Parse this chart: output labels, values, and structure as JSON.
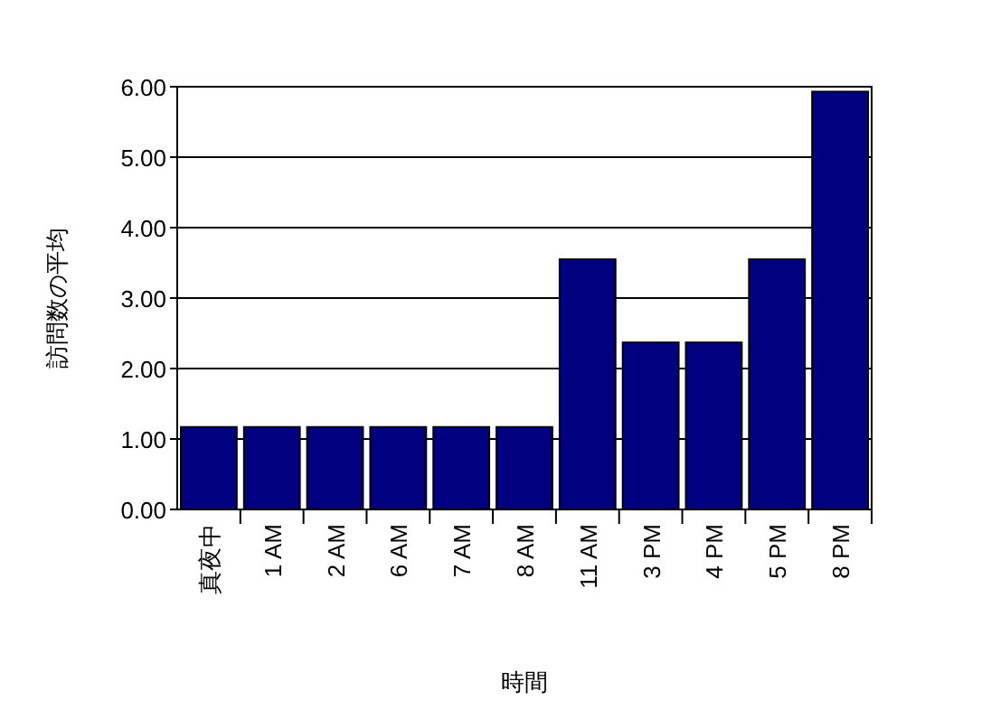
{
  "chart_data": {
    "type": "bar",
    "xlabel": "時間",
    "ylabel": "訪問数の平均",
    "categories": [
      "真夜中",
      "1 AM",
      "2 AM",
      "6 AM",
      "7 AM",
      "8 AM",
      "11 AM",
      "3 PM",
      "4 PM",
      "5 PM",
      "8 PM"
    ],
    "values": [
      1.17,
      1.17,
      1.17,
      1.17,
      1.17,
      1.17,
      3.55,
      2.37,
      2.37,
      3.55,
      5.93
    ],
    "color": "#000080",
    "ylim": [
      0,
      6
    ],
    "yticks": [
      {
        "value": 0,
        "label": "0.00"
      },
      {
        "value": 1,
        "label": "1.00"
      },
      {
        "value": 2,
        "label": "2.00"
      },
      {
        "value": 3,
        "label": "3.00"
      },
      {
        "value": 4,
        "label": "4.00"
      },
      {
        "value": 5,
        "label": "5.00"
      },
      {
        "value": 6,
        "label": "6.00"
      }
    ],
    "grid": "y"
  }
}
